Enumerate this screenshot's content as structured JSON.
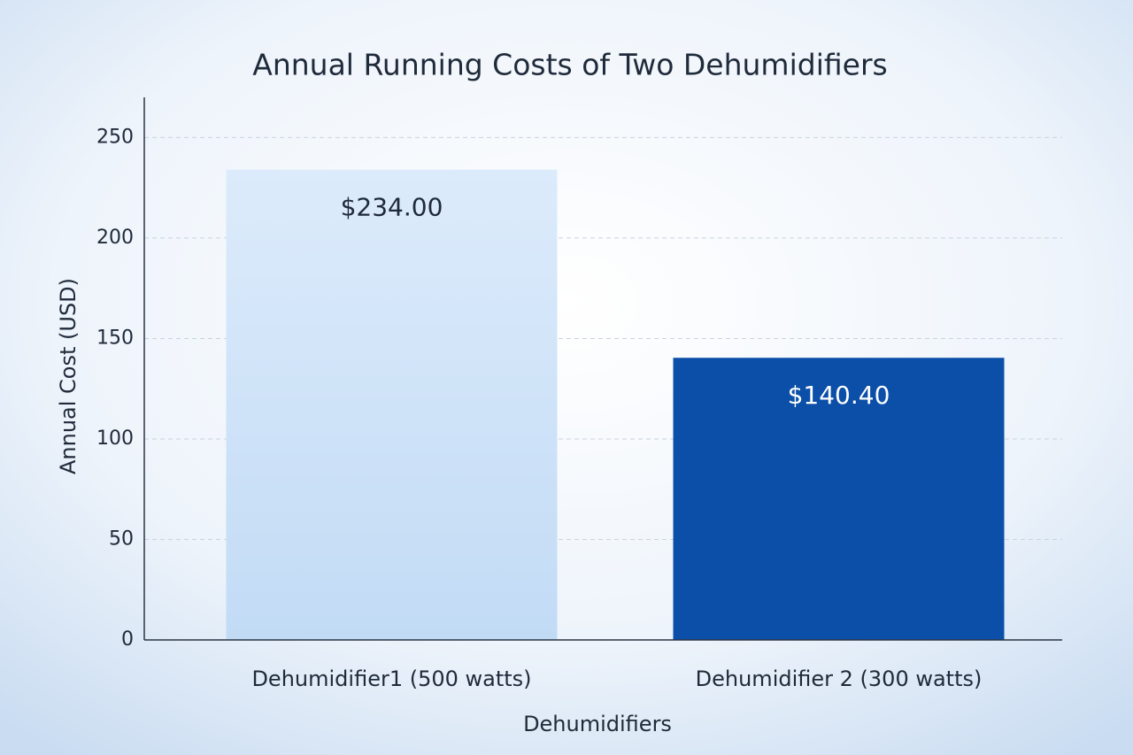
{
  "chart_data": {
    "type": "bar",
    "title": "Annual Running Costs of Two Dehumidifiers",
    "x_label": "Dehumidifiers",
    "y_label": "Annual Cost (USD)",
    "categories": [
      "Dehumidifier1 (500 watts)",
      "Dehumidifier 2 (300 watts)"
    ],
    "values": [
      234,
      140.4
    ],
    "value_labels": [
      "$234.00",
      "$140.40"
    ],
    "colors": [
      "#cfe3f8",
      "#0b4fa8"
    ],
    "ylim": [
      0,
      270
    ],
    "yticks": [
      0,
      50,
      100,
      150,
      200,
      250
    ],
    "grid": true
  }
}
